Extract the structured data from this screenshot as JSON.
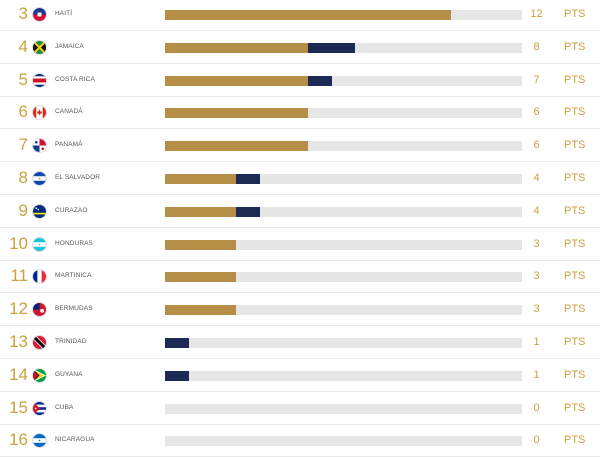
{
  "standings": {
    "pts_label": "PTS",
    "max_points": 15,
    "colors": {
      "rank": "#c9a23f",
      "bar_gold": "#b58e48",
      "bar_navy": "#1c2a55",
      "track": "#e6e6e6"
    },
    "rows": [
      {
        "rank": "3",
        "team": "HAITÍ",
        "flag": "haiti",
        "gold": 12,
        "navy": 0,
        "points": "12"
      },
      {
        "rank": "4",
        "team": "JAMAICA",
        "flag": "jamaica",
        "gold": 6,
        "navy": 2,
        "points": "8"
      },
      {
        "rank": "5",
        "team": "COSTA RICA",
        "flag": "costa-rica",
        "gold": 6,
        "navy": 1,
        "points": "7"
      },
      {
        "rank": "6",
        "team": "CANADÁ",
        "flag": "canada",
        "gold": 6,
        "navy": 0,
        "points": "6"
      },
      {
        "rank": "7",
        "team": "PANAMÁ",
        "flag": "panama",
        "gold": 6,
        "navy": 0,
        "points": "6"
      },
      {
        "rank": "8",
        "team": "EL SALVADOR",
        "flag": "el-salvador",
        "gold": 3,
        "navy": 1,
        "points": "4"
      },
      {
        "rank": "9",
        "team": "CURAZAO",
        "flag": "curacao",
        "gold": 3,
        "navy": 1,
        "points": "4"
      },
      {
        "rank": "10",
        "team": "HONDURAS",
        "flag": "honduras",
        "gold": 3,
        "navy": 0,
        "points": "3"
      },
      {
        "rank": "11",
        "team": "MARTINICA",
        "flag": "martinique",
        "gold": 3,
        "navy": 0,
        "points": "3"
      },
      {
        "rank": "12",
        "team": "BERMUDAS",
        "flag": "bermuda",
        "gold": 3,
        "navy": 0,
        "points": "3"
      },
      {
        "rank": "13",
        "team": "TRINIDAD",
        "flag": "trinidad",
        "gold": 0,
        "navy": 1,
        "points": "1"
      },
      {
        "rank": "14",
        "team": "GUYANA",
        "flag": "guyana",
        "gold": 0,
        "navy": 1,
        "points": "1"
      },
      {
        "rank": "15",
        "team": "CUBA",
        "flag": "cuba",
        "gold": 0,
        "navy": 0,
        "points": "0"
      },
      {
        "rank": "16",
        "team": "NICARAGUA",
        "flag": "nicaragua",
        "gold": 0,
        "navy": 0,
        "points": "0"
      }
    ]
  }
}
